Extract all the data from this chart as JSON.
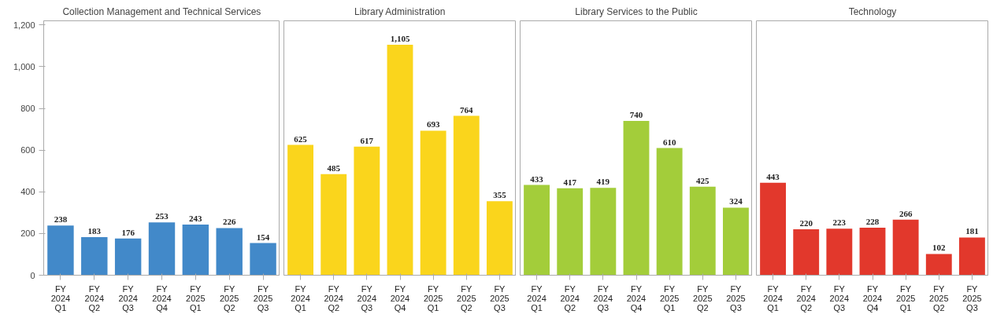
{
  "chart_data": [
    {
      "type": "bar",
      "title": "Collection Management and Technical Services",
      "categories": [
        "FY 2024 Q1",
        "FY 2024 Q2",
        "FY 2024 Q3",
        "FY 2024 Q4",
        "FY 2025 Q1",
        "FY 2025 Q2",
        "FY 2025 Q3"
      ],
      "values": [
        238,
        183,
        176,
        253,
        243,
        226,
        154
      ],
      "color": "#4289c9",
      "ylim": [
        0,
        1220
      ],
      "yticks": [
        0,
        {
          "value": 200,
          "label": "200"
        },
        400,
        600,
        800,
        {
          "value": 1000,
          "label": "1,000"
        },
        {
          "value": 1200,
          "label": "1,200"
        }
      ],
      "data_labels": true,
      "grid": false
    },
    {
      "type": "bar",
      "title": "Library Administration",
      "categories": [
        "FY 2024 Q1",
        "FY 2024 Q2",
        "FY 2024 Q3",
        "FY 2024 Q4",
        "FY 2025 Q1",
        "FY 2025 Q2",
        "FY 2025 Q3"
      ],
      "values": [
        625,
        485,
        617,
        1105,
        693,
        764,
        355
      ],
      "value_labels": [
        "625",
        "485",
        "617",
        "1,105",
        "693",
        "764",
        "355"
      ],
      "color": "#fad51c",
      "ylim": [
        0,
        1220
      ],
      "tick_labels": "x",
      "grid": false
    },
    {
      "type": "bar",
      "title": "Library Services to the Public",
      "categories": [
        "FY 2024 Q1",
        "FY 2024 Q2",
        "FY 2024 Q3",
        "FY 2024 Q4",
        "FY 2025 Q1",
        "FY 2025 Q2",
        "FY 2025 Q3"
      ],
      "values": [
        433,
        417,
        419,
        740,
        610,
        425,
        324
      ],
      "color": "#a3cd3a",
      "ylim": [
        0,
        1220
      ],
      "tick_labels": "x",
      "data_labels": true,
      "grid": false
    },
    {
      "type": "bar",
      "title": "Technology",
      "categories": [
        "FY 2024 Q1",
        "FY 2024 Q2",
        "FY 2024 Q3",
        "FY 2024 Q4",
        "FY 2025 Q1",
        "FY 2025 Q2",
        "FY 2025 Q3"
      ],
      "values": [
        443,
        220,
        223,
        228,
        266,
        102,
        181
      ],
      "color": "#e2382c",
      "ylim": [
        0,
        1220
      ],
      "tick_labels": "x",
      "data_labels": true,
      "grid": false
    }
  ]
}
